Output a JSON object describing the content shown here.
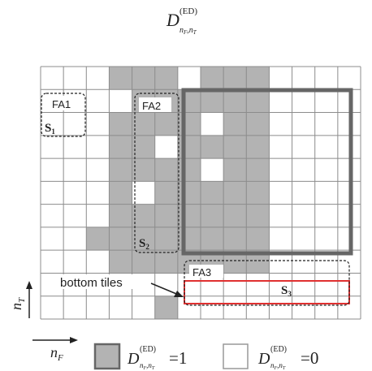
{
  "title": {
    "symbol": "D",
    "sup": "(ED)",
    "sub": "n_F,n_T"
  },
  "grid": {
    "columns": 14,
    "rows": 11
  },
  "colors": {
    "cell_on": "#b3b3b3",
    "grid_line": "#8c8c8c",
    "block_border": "#666666",
    "bottom_border": "#e03030",
    "text": "#222222"
  },
  "filled_cells": [
    [
      0,
      3
    ],
    [
      0,
      4
    ],
    [
      0,
      5
    ],
    [
      0,
      7
    ],
    [
      0,
      8
    ],
    [
      0,
      9
    ],
    [
      1,
      4
    ],
    [
      1,
      5
    ],
    [
      1,
      6
    ],
    [
      1,
      7
    ],
    [
      1,
      8
    ],
    [
      1,
      9
    ],
    [
      2,
      3
    ],
    [
      2,
      4
    ],
    [
      2,
      5
    ],
    [
      2,
      6
    ],
    [
      2,
      8
    ],
    [
      2,
      9
    ],
    [
      3,
      3
    ],
    [
      3,
      4
    ],
    [
      3,
      6
    ],
    [
      3,
      7
    ],
    [
      3,
      8
    ],
    [
      3,
      9
    ],
    [
      4,
      3
    ],
    [
      4,
      4
    ],
    [
      4,
      5
    ],
    [
      4,
      6
    ],
    [
      4,
      8
    ],
    [
      4,
      9
    ],
    [
      5,
      3
    ],
    [
      5,
      5
    ],
    [
      5,
      6
    ],
    [
      5,
      7
    ],
    [
      5,
      8
    ],
    [
      5,
      9
    ],
    [
      6,
      3
    ],
    [
      6,
      4
    ],
    [
      6,
      5
    ],
    [
      6,
      6
    ],
    [
      6,
      7
    ],
    [
      6,
      8
    ],
    [
      6,
      9
    ],
    [
      7,
      2
    ],
    [
      7,
      3
    ],
    [
      7,
      4
    ],
    [
      7,
      5
    ],
    [
      7,
      6
    ],
    [
      7,
      7
    ],
    [
      7,
      8
    ],
    [
      7,
      9
    ],
    [
      8,
      3
    ],
    [
      8,
      4
    ],
    [
      8,
      5
    ],
    [
      8,
      6
    ],
    [
      8,
      7
    ],
    [
      8,
      8
    ],
    [
      8,
      9
    ],
    [
      10,
      5
    ]
  ],
  "regions": [
    {
      "id": "FA1",
      "label": "FA1"
    },
    {
      "id": "FA2",
      "label": "FA2"
    },
    {
      "id": "FA3",
      "label": "FA3"
    }
  ],
  "markers": [
    {
      "id": "S1",
      "letter": "S",
      "index": "1"
    },
    {
      "id": "S2",
      "letter": "S",
      "index": "2"
    },
    {
      "id": "S3",
      "letter": "S",
      "index": "3"
    }
  ],
  "annotation": {
    "text": "bottom tiles"
  },
  "axes": {
    "vertical": {
      "symbol": "n",
      "sub": "T"
    },
    "horizontal": {
      "symbol": "n",
      "sub": "F"
    }
  },
  "legend": [
    {
      "swatch": "filled",
      "symbol": "D",
      "sup": "(ED)",
      "sub": "n_F,n_T",
      "eq": "=1"
    },
    {
      "swatch": "empty",
      "symbol": "D",
      "sup": "(ED)",
      "sub": "n_F,n_T",
      "eq": "=0"
    }
  ]
}
